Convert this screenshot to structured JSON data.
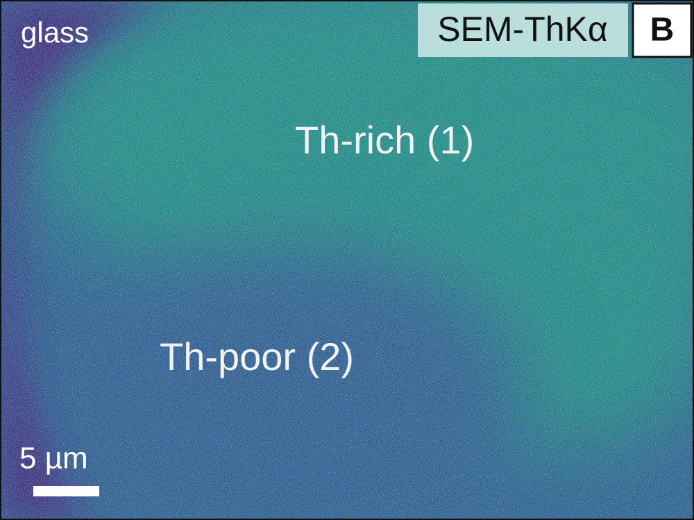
{
  "labels": {
    "region_glass": "glass",
    "technique": "SEM-ThKα",
    "panel": "B",
    "th_rich": "Th-rich (1)",
    "th_poor": "Th-poor (2)",
    "scale_bar": "5 µm"
  }
}
